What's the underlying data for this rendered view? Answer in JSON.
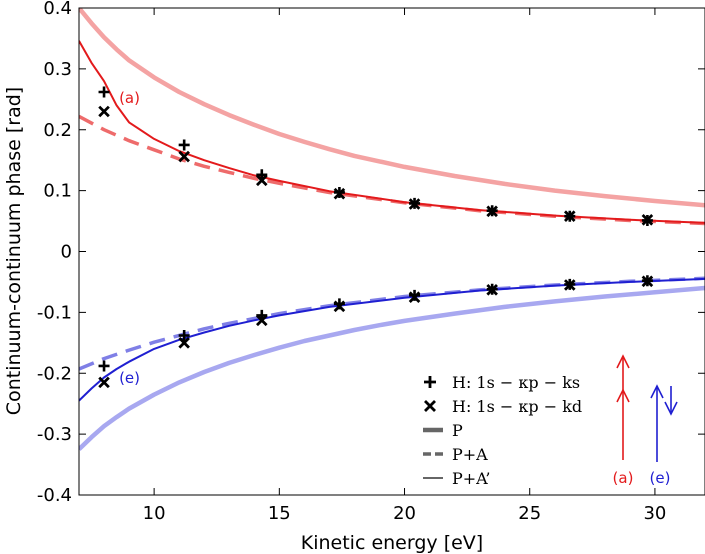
{
  "chart_data": {
    "type": "line",
    "xlabel": "Kinetic energy [eV]",
    "ylabel": "Continuum-continuum phase [rad]",
    "xlim": [
      7,
      32
    ],
    "ylim": [
      -0.4,
      0.4
    ],
    "xticks": [
      10,
      15,
      20,
      25,
      30
    ],
    "yticks": [
      -0.4,
      -0.3,
      -0.2,
      -0.1,
      0,
      0.1,
      0.2,
      0.3,
      0.4
    ],
    "xtick_labels": [
      "10",
      "15",
      "20",
      "25",
      "30"
    ],
    "ytick_labels": [
      "-0.4",
      "-0.3",
      "-0.2",
      "-0.1",
      "0",
      "0.1",
      "0.2",
      "0.3",
      "0.4"
    ],
    "grid": false,
    "colors": {
      "red": "#e31a1c",
      "red_light": "#f4a3a3",
      "red_dashed": "#ee6b6b",
      "blue": "#1f1fd1",
      "blue_light": "#a8a8f0",
      "blue_dashed": "#7f7fe6",
      "legend_gray": "#666666"
    },
    "series": [
      {
        "group": "a",
        "style": "P",
        "x": [
          7,
          7.5,
          8,
          8.5,
          9,
          10,
          11,
          12,
          13,
          14,
          15,
          16,
          17,
          18,
          19,
          20,
          22,
          24,
          26,
          28,
          30,
          32
        ],
        "y": [
          0.4,
          0.375,
          0.352,
          0.332,
          0.314,
          0.286,
          0.262,
          0.242,
          0.224,
          0.208,
          0.193,
          0.18,
          0.168,
          0.157,
          0.148,
          0.139,
          0.124,
          0.111,
          0.1,
          0.091,
          0.083,
          0.076
        ]
      },
      {
        "group": "a",
        "style": "P+A",
        "x": [
          7,
          8,
          9,
          10,
          11,
          12,
          13,
          14,
          15,
          17,
          20,
          23,
          26,
          29,
          32
        ],
        "y": [
          0.222,
          0.2,
          0.182,
          0.167,
          0.152,
          0.14,
          0.13,
          0.12,
          0.112,
          0.097,
          0.08,
          0.067,
          0.058,
          0.051,
          0.046
        ]
      },
      {
        "group": "a",
        "style": "P+A'",
        "x": [
          7,
          7.5,
          8,
          8.5,
          9,
          10,
          11,
          12,
          13,
          14,
          15,
          17,
          20,
          23,
          26,
          29,
          32
        ],
        "y": [
          0.346,
          0.31,
          0.28,
          0.24,
          0.212,
          0.185,
          0.165,
          0.15,
          0.137,
          0.125,
          0.116,
          0.099,
          0.081,
          0.068,
          0.059,
          0.052,
          0.047
        ]
      },
      {
        "group": "e",
        "style": "P",
        "x": [
          7,
          7.5,
          8,
          8.5,
          9,
          10,
          11,
          12,
          13,
          14,
          15,
          16,
          17,
          18,
          19,
          20,
          22,
          24,
          26,
          28,
          30,
          32
        ],
        "y": [
          -0.325,
          -0.305,
          -0.287,
          -0.272,
          -0.258,
          -0.235,
          -0.215,
          -0.198,
          -0.183,
          -0.17,
          -0.158,
          -0.147,
          -0.138,
          -0.129,
          -0.121,
          -0.114,
          -0.102,
          -0.091,
          -0.082,
          -0.074,
          -0.067,
          -0.06
        ]
      },
      {
        "group": "e",
        "style": "P+A",
        "x": [
          7,
          8,
          9,
          10,
          11,
          12,
          13,
          14,
          15,
          17,
          20,
          23,
          26,
          29,
          32
        ],
        "y": [
          -0.193,
          -0.176,
          -0.162,
          -0.149,
          -0.138,
          -0.127,
          -0.118,
          -0.11,
          -0.102,
          -0.089,
          -0.074,
          -0.063,
          -0.055,
          -0.049,
          -0.044
        ]
      },
      {
        "group": "e",
        "style": "P+A'",
        "x": [
          7,
          7.5,
          8,
          8.5,
          9,
          10,
          11,
          12,
          13,
          14,
          15,
          17,
          20,
          23,
          26,
          29,
          32
        ],
        "y": [
          -0.245,
          -0.225,
          -0.207,
          -0.193,
          -0.181,
          -0.16,
          -0.145,
          -0.133,
          -0.122,
          -0.113,
          -0.105,
          -0.091,
          -0.076,
          -0.064,
          -0.056,
          -0.05,
          -0.045
        ]
      },
      {
        "group": "a",
        "style": "H: 1s-kp-ks",
        "x": [
          8.0,
          11.2,
          14.3,
          17.4,
          20.4,
          23.5,
          26.6,
          29.7
        ],
        "y": [
          0.262,
          0.175,
          0.126,
          0.097,
          0.079,
          0.067,
          0.058,
          0.051
        ]
      },
      {
        "group": "a",
        "style": "H: 1s-kp-kd",
        "x": [
          8.0,
          11.2,
          14.3,
          17.4,
          20.4,
          23.5,
          26.6,
          29.7
        ],
        "y": [
          0.23,
          0.156,
          0.117,
          0.095,
          0.078,
          0.066,
          0.058,
          0.052
        ]
      },
      {
        "group": "e",
        "style": "H: 1s-kp-ks",
        "x": [
          8.0,
          11.2,
          14.3,
          17.4,
          20.4,
          23.5,
          26.6,
          29.7
        ],
        "y": [
          -0.188,
          -0.138,
          -0.105,
          -0.086,
          -0.072,
          -0.062,
          -0.054,
          -0.048
        ]
      },
      {
        "group": "e",
        "style": "H: 1s-kp-kd",
        "x": [
          8.0,
          11.2,
          14.3,
          17.4,
          20.4,
          23.5,
          26.6,
          29.7
        ],
        "y": [
          -0.215,
          -0.15,
          -0.113,
          -0.09,
          -0.075,
          -0.063,
          -0.055,
          -0.049
        ]
      }
    ],
    "annotations": [
      {
        "text": "(a)",
        "x": 8.6,
        "y": 0.252,
        "color": "#e31a1c"
      },
      {
        "text": "(e)",
        "x": 8.6,
        "y": -0.208,
        "color": "#1f1fd1"
      }
    ],
    "legend": {
      "placement": "bottom-right",
      "entries": [
        "H: 1s − κp − ks",
        "H: 1s − κp − kd",
        "P",
        "P+A",
        "P+A’"
      ]
    },
    "inset": {
      "labels": [
        "(a)",
        "(e)"
      ]
    }
  }
}
